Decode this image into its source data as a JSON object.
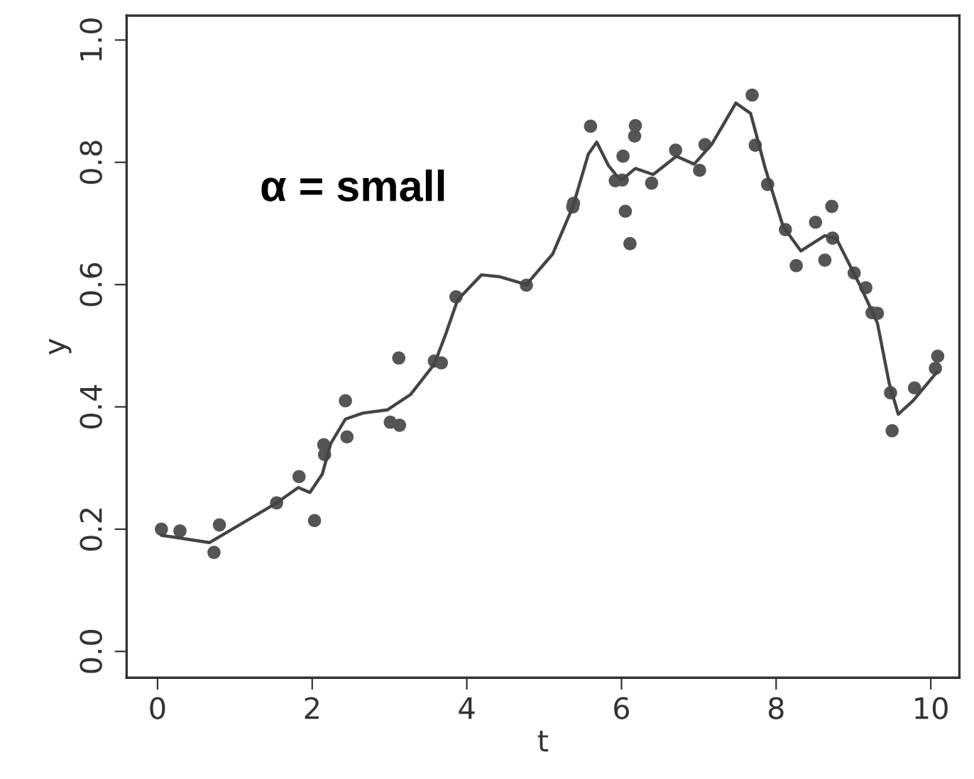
{
  "chart_data": {
    "type": "scatter",
    "xlabel": "t",
    "ylabel": "y",
    "xlim": [
      -0.4,
      10.37
    ],
    "ylim": [
      -0.043,
      1.04
    ],
    "xticks": [
      0,
      2,
      4,
      6,
      8,
      10
    ],
    "yticks": [
      {
        "value": 0,
        "label": "0.0"
      },
      0.2,
      0.4,
      0.6,
      0.8,
      {
        "value": 1,
        "label": "1.0"
      }
    ],
    "grid": false,
    "legend": false,
    "marker": "circle",
    "annotations": [
      "α = small"
    ],
    "series": [
      {
        "color": "#555555",
        "x": [
          0.05,
          0.29,
          0.73,
          0.8,
          1.54,
          1.83,
          2.03,
          2.15,
          2.16,
          2.43,
          2.45,
          3.01,
          3.13,
          3.12,
          3.58,
          3.67,
          3.86,
          4.77,
          5.37,
          5.38,
          5.6,
          5.92,
          6.01,
          6.02,
          6.05,
          6.11,
          6.18,
          6.17,
          6.39,
          6.7,
          7.01,
          7.08,
          7.69,
          7.73,
          7.89,
          8.12,
          8.26,
          8.51,
          8.63,
          8.72,
          8.73,
          9.01,
          9.16,
          9.24,
          9.31,
          9.48,
          9.5,
          9.79,
          10.06,
          10.09
        ],
        "values": [
          0.2,
          0.197,
          0.162,
          0.207,
          0.243,
          0.286,
          0.214,
          0.338,
          0.322,
          0.41,
          0.351,
          0.375,
          0.37,
          0.48,
          0.475,
          0.472,
          0.58,
          0.599,
          0.727,
          0.733,
          0.859,
          0.77,
          0.771,
          0.81,
          0.72,
          0.667,
          0.86,
          0.843,
          0.766,
          0.82,
          0.787,
          0.829,
          0.91,
          0.828,
          0.764,
          0.69,
          0.631,
          0.702,
          0.64,
          0.728,
          0.676,
          0.619,
          0.595,
          0.554,
          0.553,
          0.423,
          0.361,
          0.431,
          0.463,
          0.483
        ]
      },
      {
        "type": "line",
        "color": "#444444",
        "marker": "none",
        "line_style": "solid",
        "x": [
          0.05,
          0.67,
          0.9,
          1.54,
          1.82,
          1.97,
          2.13,
          2.24,
          2.43,
          2.66,
          2.97,
          3.27,
          3.58,
          3.73,
          3.88,
          4.19,
          4.42,
          4.77,
          5.11,
          5.37,
          5.57,
          5.68,
          5.83,
          5.99,
          6.18,
          6.41,
          6.71,
          6.94,
          7.17,
          7.48,
          7.67,
          7.86,
          8.09,
          8.32,
          8.63,
          8.78,
          9.08,
          9.31,
          9.46,
          9.58,
          9.77,
          10.08
        ],
        "values": [
          0.19,
          0.178,
          0.195,
          0.243,
          0.268,
          0.26,
          0.29,
          0.34,
          0.38,
          0.39,
          0.395,
          0.42,
          0.47,
          0.52,
          0.575,
          0.616,
          0.613,
          0.6,
          0.65,
          0.727,
          0.813,
          0.833,
          0.795,
          0.77,
          0.79,
          0.78,
          0.81,
          0.797,
          0.83,
          0.897,
          0.88,
          0.79,
          0.695,
          0.655,
          0.68,
          0.675,
          0.6,
          0.537,
          0.44,
          0.388,
          0.41,
          0.457
        ]
      }
    ]
  }
}
